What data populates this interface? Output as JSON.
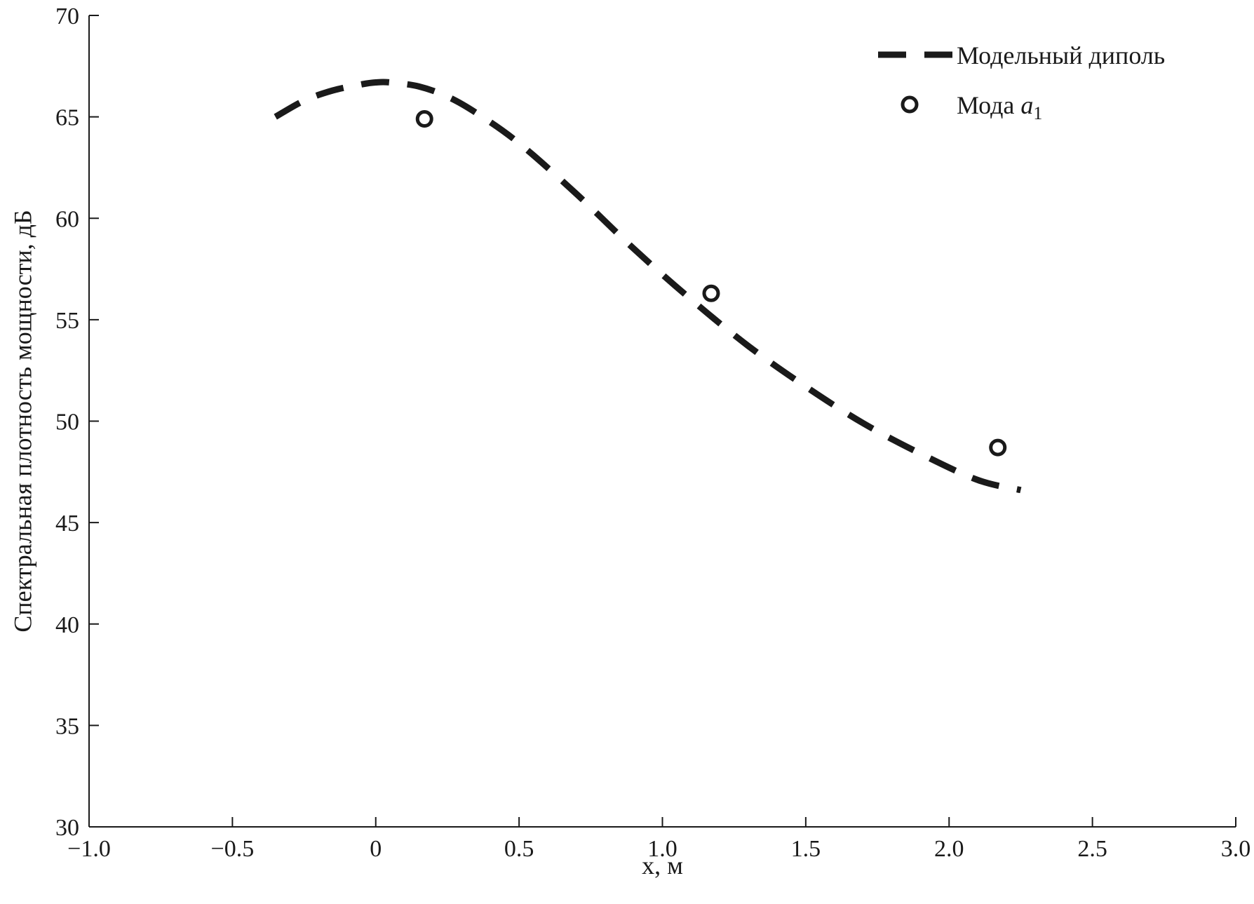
{
  "chart_data": {
    "type": "line",
    "xlabel": "x, м",
    "ylabel": "Спектральная плотность мощности, дБ",
    "xlim": [
      -1.0,
      3.0
    ],
    "ylim": [
      30,
      70
    ],
    "xticks": [
      -1.0,
      -0.5,
      0,
      0.5,
      1.0,
      1.5,
      2.0,
      2.5,
      3.0
    ],
    "xtick_labels": [
      "−1.0",
      "−0.5",
      "0",
      "0.5",
      "1.0",
      "1.5",
      "2.0",
      "2.5",
      "3.0"
    ],
    "yticks": [
      30,
      35,
      40,
      45,
      50,
      55,
      60,
      65,
      70
    ],
    "ytick_labels": [
      "30",
      "35",
      "40",
      "45",
      "50",
      "55",
      "60",
      "65",
      "70"
    ],
    "grid": false,
    "legend_position": "top-right",
    "colors": {
      "line": "#1a1a1a",
      "marker": "#1a1a1a"
    },
    "series": [
      {
        "name": "Модельный диполь",
        "style": "dashed-line",
        "x": [
          -0.35,
          -0.25,
          -0.15,
          -0.05,
          0.0,
          0.05,
          0.15,
          0.25,
          0.35,
          0.5,
          0.7,
          0.9,
          1.1,
          1.3,
          1.5,
          1.7,
          1.9,
          2.1,
          2.25
        ],
        "y": [
          65.0,
          65.8,
          66.3,
          66.6,
          66.7,
          66.7,
          66.5,
          66.0,
          65.2,
          63.7,
          61.2,
          58.5,
          56.0,
          53.7,
          51.7,
          49.9,
          48.4,
          47.1,
          46.6
        ]
      },
      {
        "name": "Мода a1",
        "name_main": "Мода ",
        "name_italic": "a",
        "name_sub": "1",
        "style": "open-circle",
        "x": [
          0.17,
          1.17,
          2.17
        ],
        "y": [
          64.9,
          56.3,
          48.7
        ]
      }
    ]
  }
}
